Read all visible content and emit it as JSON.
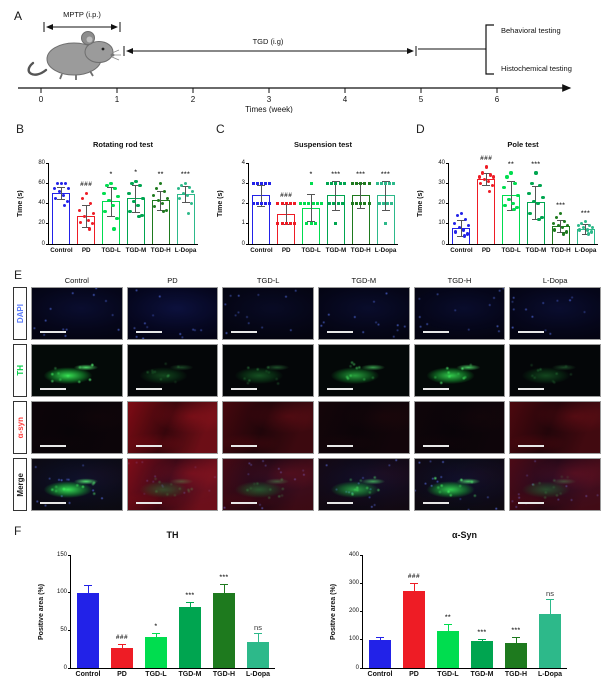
{
  "figure": {
    "panel_letters": {
      "a": "A",
      "b": "B",
      "c": "C",
      "d": "D",
      "e": "E",
      "f": "F"
    },
    "groups": [
      "Control",
      "PD",
      "TGD-L",
      "TGD-M",
      "TGD-H",
      "L-Dopa"
    ],
    "group_colors": [
      "#2222e8",
      "#ee1c25",
      "#00dd4f",
      "#00a550",
      "#1e7a1e",
      "#2db98a"
    ],
    "panel_a": {
      "mptp_label": "MPTP (i.p.)",
      "tgd_label": "TGD (i.g)",
      "bracket_labels": [
        "Behavioral testing",
        "Histochemical testing"
      ],
      "axis_ticks": [
        "0",
        "1",
        "2",
        "3",
        "4",
        "5",
        "6"
      ],
      "axis_label": "Times (week)"
    },
    "panel_e": {
      "column_headers": [
        "Control",
        "PD",
        "TGD-L",
        "TGD-M",
        "TGD-H",
        "L-Dopa"
      ],
      "row_labels": [
        "DAPI",
        "TH",
        "α-syn",
        "Merge"
      ],
      "row_label_colors": [
        "#5b7cfa",
        "#00cc44",
        "#ff4040",
        "#222222"
      ],
      "rows": [
        {
          "label": "DAPI",
          "cells": [
            {
              "b": 0.55,
              "g": 0,
              "r": 0
            },
            {
              "b": 0.75,
              "g": 0,
              "r": 0
            },
            {
              "b": 0.4,
              "g": 0,
              "r": 0
            },
            {
              "b": 0.5,
              "g": 0,
              "r": 0
            },
            {
              "b": 0.5,
              "g": 0,
              "r": 0
            },
            {
              "b": 0.55,
              "g": 0,
              "r": 0
            }
          ]
        },
        {
          "label": "TH",
          "cells": [
            {
              "b": 0,
              "g": 1.0,
              "r": 0
            },
            {
              "b": 0,
              "g": 0.3,
              "r": 0
            },
            {
              "b": 0,
              "g": 0.35,
              "r": 0
            },
            {
              "b": 0,
              "g": 0.7,
              "r": 0
            },
            {
              "b": 0,
              "g": 0.9,
              "r": 0
            },
            {
              "b": 0,
              "g": 0.3,
              "r": 0
            }
          ]
        },
        {
          "label": "α-syn",
          "cells": [
            {
              "b": 0,
              "g": 0,
              "r": 0.06
            },
            {
              "b": 0,
              "g": 0,
              "r": 1.0
            },
            {
              "b": 0,
              "g": 0,
              "r": 0.5
            },
            {
              "b": 0,
              "g": 0,
              "r": 0.12
            },
            {
              "b": 0,
              "g": 0,
              "r": 0.08
            },
            {
              "b": 0,
              "g": 0,
              "r": 0.55
            }
          ]
        },
        {
          "label": "Merge",
          "cells": [
            {
              "b": 0.5,
              "g": 1.0,
              "r": 0.06
            },
            {
              "b": 0.5,
              "g": 0.3,
              "r": 1.0
            },
            {
              "b": 0.4,
              "g": 0.35,
              "r": 0.5
            },
            {
              "b": 0.5,
              "g": 0.7,
              "r": 0.12
            },
            {
              "b": 0.5,
              "g": 0.9,
              "r": 0.08
            },
            {
              "b": 0.5,
              "g": 0.3,
              "r": 0.55
            }
          ]
        }
      ]
    }
  },
  "chart_data": [
    {
      "id": "rotating_rod",
      "panel": "B",
      "type": "bar",
      "style": "outline",
      "marker": "circle",
      "title": "Rotating rod test",
      "ylabel": "Time (s)",
      "ylim": [
        0,
        80
      ],
      "yticks": [
        0,
        20,
        40,
        60,
        80
      ],
      "categories": [
        "Control",
        "PD",
        "TGD-L",
        "TGD-M",
        "TGD-H",
        "L-Dopa"
      ],
      "values": [
        50,
        28,
        42,
        45,
        43,
        49
      ],
      "errors": [
        6,
        11,
        14,
        13,
        9,
        8
      ],
      "sig": [
        "",
        "###",
        "*",
        "*",
        "**",
        "***"
      ],
      "points": [
        [
          60,
          60,
          60,
          55,
          55,
          52,
          48,
          45,
          42,
          38
        ],
        [
          50,
          45,
          40,
          33,
          30,
          27,
          23,
          21,
          20,
          15
        ],
        [
          60,
          58,
          55,
          50,
          47,
          43,
          38,
          32,
          25,
          15
        ],
        [
          62,
          60,
          58,
          50,
          45,
          42,
          38,
          32,
          28,
          27
        ],
        [
          60,
          55,
          52,
          48,
          45,
          43,
          40,
          37,
          33,
          32
        ],
        [
          60,
          58,
          56,
          55,
          52,
          50,
          48,
          45,
          40,
          30
        ]
      ]
    },
    {
      "id": "suspension",
      "panel": "C",
      "type": "bar",
      "style": "outline",
      "marker": "square",
      "title": "Suspension test",
      "ylabel": "Time (s)",
      "ylim": [
        0,
        4
      ],
      "yticks": [
        0,
        1,
        2,
        3,
        4
      ],
      "categories": [
        "Control",
        "PD",
        "TGD-L",
        "TGD-M",
        "TGD-H",
        "L-Dopa"
      ],
      "values": [
        2.4,
        1.5,
        1.8,
        2.4,
        2.4,
        2.4
      ],
      "errors": [
        0.5,
        0.5,
        0.65,
        0.7,
        0.6,
        0.7
      ],
      "sig": [
        "",
        "###",
        "*",
        "***",
        "***",
        "***"
      ],
      "points": [
        [
          3,
          3,
          3,
          3,
          3,
          2,
          2,
          2,
          2,
          2
        ],
        [
          2,
          2,
          2,
          2,
          2,
          1,
          1,
          1,
          1,
          1
        ],
        [
          3,
          2,
          2,
          2,
          2,
          2,
          2,
          1,
          1,
          1
        ],
        [
          3,
          3,
          3,
          3,
          3,
          2,
          2,
          2,
          2,
          1
        ],
        [
          3,
          3,
          3,
          3,
          3,
          2,
          2,
          2,
          2,
          2
        ],
        [
          3,
          3,
          3,
          3,
          3,
          2,
          2,
          2,
          2,
          1
        ]
      ]
    },
    {
      "id": "pole",
      "panel": "D",
      "type": "bar",
      "style": "outline",
      "marker": "circle",
      "title": "Pole test",
      "ylabel": "Time (s)",
      "ylim": [
        0,
        40
      ],
      "yticks": [
        0,
        10,
        20,
        30,
        40
      ],
      "categories": [
        "Control",
        "PD",
        "TGD-L",
        "TGD-M",
        "TGD-H",
        "L-Dopa"
      ],
      "values": [
        8,
        32,
        24,
        20.5,
        9,
        7.5
      ],
      "errors": [
        4,
        3,
        7,
        8,
        3,
        2.5
      ],
      "sig": [
        "",
        "###",
        "**",
        "***",
        "***",
        "***"
      ],
      "points": [
        [
          15,
          14,
          12,
          10,
          9,
          8,
          7,
          6,
          5,
          4
        ],
        [
          38,
          35,
          34,
          33,
          33,
          32,
          31,
          30,
          29,
          26
        ],
        [
          35,
          33,
          30,
          28,
          24,
          22,
          20,
          19,
          18,
          17
        ],
        [
          35,
          30,
          29,
          25,
          23,
          21,
          20,
          15,
          13,
          12
        ],
        [
          15,
          13,
          11,
          10,
          9,
          9,
          8,
          7,
          6,
          5
        ],
        [
          11,
          10,
          9,
          9,
          8,
          8,
          7,
          7,
          6,
          5
        ]
      ]
    },
    {
      "id": "th_area",
      "panel": "F",
      "type": "bar",
      "style": "solid",
      "title": "TH",
      "ylabel": "Positive area (%)",
      "ylim": [
        0,
        150
      ],
      "yticks": [
        0,
        50,
        100,
        150
      ],
      "categories": [
        "Control",
        "PD",
        "TGD-L",
        "TGD-M",
        "TGD-H",
        "L-Dopa"
      ],
      "values": [
        100,
        27,
        41,
        81,
        100,
        35
      ],
      "errors": [
        10,
        5,
        5,
        6,
        12,
        12
      ],
      "sig": [
        "",
        "###",
        "*",
        "***",
        "***",
        "ns"
      ]
    },
    {
      "id": "asyn_area",
      "panel": "F",
      "type": "bar",
      "style": "solid",
      "title": "α-Syn",
      "ylabel": "Positive area (%)",
      "ylim": [
        0,
        400
      ],
      "yticks": [
        0,
        100,
        200,
        300,
        400
      ],
      "categories": [
        "Control",
        "PD",
        "TGD-L",
        "TGD-M",
        "TGD-H",
        "L-Dopa"
      ],
      "values": [
        100,
        272,
        130,
        95,
        87,
        192
      ],
      "errors": [
        10,
        30,
        27,
        7,
        22,
        52
      ],
      "sig": [
        "",
        "###",
        "**",
        "***",
        "***",
        "ns"
      ]
    }
  ]
}
